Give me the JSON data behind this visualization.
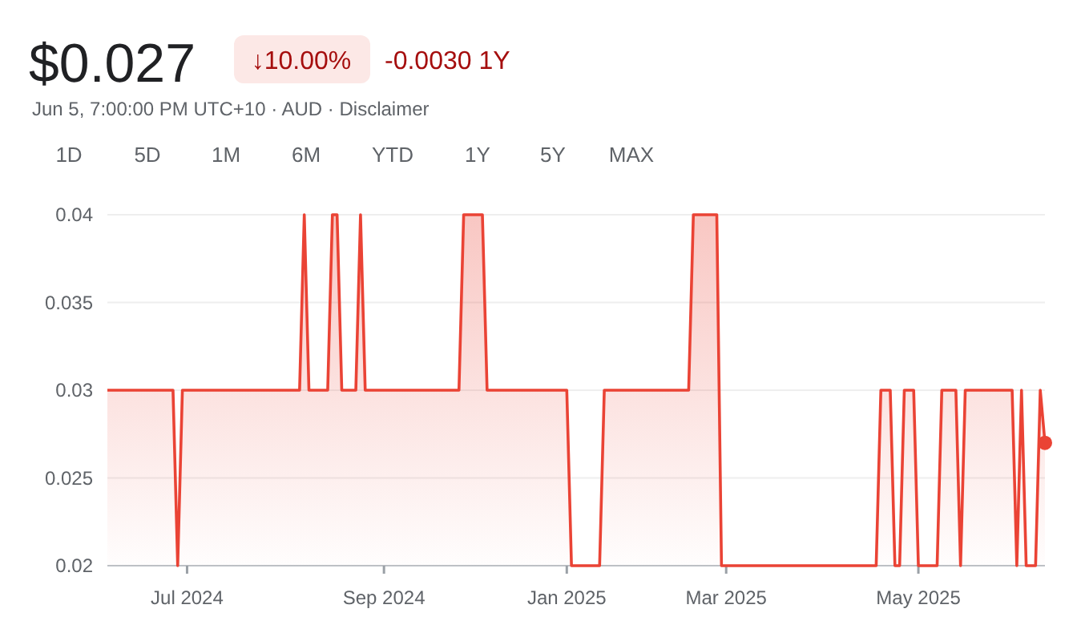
{
  "chart_data": {
    "type": "area",
    "title": "$0.027",
    "subtitle": "Jun 5, 7:00:00 PM UTC+10 · AUD · Disclaimer",
    "annotations": [
      "↓10.00%",
      "-0.0030 1Y",
      "1D",
      "5D",
      "1M",
      "6M",
      "YTD",
      "1Y",
      "5Y",
      "MAX"
    ],
    "categories": [
      null,
      null,
      null,
      null,
      null,
      null,
      null,
      null,
      null,
      null,
      null,
      null,
      null,
      null,
      null,
      null,
      null,
      "Jul 2024",
      null,
      null,
      null,
      null,
      null,
      null,
      null,
      null,
      null,
      null,
      null,
      null,
      null,
      null,
      null,
      null,
      null,
      null,
      null,
      null,
      null,
      null,
      null,
      null,
      null,
      null,
      null,
      null,
      null,
      null,
      null,
      null,
      null,
      null,
      null,
      null,
      null,
      null,
      null,
      null,
      null,
      "Sep 2024",
      null,
      null,
      null,
      null,
      null,
      null,
      null,
      null,
      null,
      null,
      null,
      null,
      null,
      null,
      null,
      null,
      null,
      null,
      null,
      null,
      null,
      null,
      null,
      null,
      null,
      null,
      null,
      null,
      null,
      null,
      null,
      null,
      null,
      null,
      null,
      null,
      null,
      null,
      "Jan 2025",
      null,
      null,
      null,
      null,
      null,
      null,
      null,
      null,
      null,
      null,
      null,
      null,
      null,
      null,
      null,
      null,
      null,
      null,
      null,
      null,
      null,
      null,
      null,
      null,
      null,
      null,
      null,
      null,
      null,
      null,
      null,
      null,
      null,
      "Mar 2025",
      null,
      null,
      null,
      null,
      null,
      null,
      null,
      null,
      null,
      null,
      null,
      null,
      null,
      null,
      null,
      null,
      null,
      null,
      null,
      null,
      null,
      null,
      null,
      null,
      null,
      null,
      null,
      null,
      null,
      null,
      null,
      null,
      null,
      null,
      null,
      null,
      null,
      null,
      null,
      null,
      "May 2025",
      null,
      null,
      null,
      null,
      null,
      null,
      null,
      null,
      null,
      null,
      null,
      null,
      null,
      null,
      null,
      null,
      null,
      null,
      null,
      null,
      null,
      null,
      null,
      null,
      null,
      null,
      null
    ],
    "series": [
      {
        "color": "#ea4335",
        "values": [
          0.03,
          0.03,
          0.03,
          0.03,
          0.03,
          0.03,
          0.03,
          0.03,
          0.03,
          0.03,
          0.03,
          0.03,
          0.03,
          0.03,
          0.03,
          0.02,
          0.03,
          0.03,
          0.03,
          0.03,
          0.03,
          0.03,
          0.03,
          0.03,
          0.03,
          0.03,
          0.03,
          0.03,
          0.03,
          0.03,
          0.03,
          0.03,
          0.03,
          0.03,
          0.03,
          0.03,
          0.03,
          0.03,
          0.03,
          0.03,
          0.03,
          0.03,
          0.04,
          0.03,
          0.03,
          0.03,
          0.03,
          0.03,
          0.04,
          0.04,
          0.03,
          0.03,
          0.03,
          0.03,
          0.04,
          0.03,
          0.03,
          0.03,
          0.03,
          0.03,
          0.03,
          0.03,
          0.03,
          0.03,
          0.03,
          0.03,
          0.03,
          0.03,
          0.03,
          0.03,
          0.03,
          0.03,
          0.03,
          0.03,
          0.03,
          0.03,
          0.04,
          0.04,
          0.04,
          0.04,
          0.04,
          0.03,
          0.03,
          0.03,
          0.03,
          0.03,
          0.03,
          0.03,
          0.03,
          0.03,
          0.03,
          0.03,
          0.03,
          0.03,
          0.03,
          0.03,
          0.03,
          0.03,
          0.03,
          0.02,
          0.02,
          0.02,
          0.02,
          0.02,
          0.02,
          0.02,
          0.03,
          0.03,
          0.03,
          0.03,
          0.03,
          0.03,
          0.03,
          0.03,
          0.03,
          0.03,
          0.03,
          0.03,
          0.03,
          0.03,
          0.03,
          0.03,
          0.03,
          0.03,
          0.03,
          0.04,
          0.04,
          0.04,
          0.04,
          0.04,
          0.04,
          0.02,
          0.02,
          0.02,
          0.02,
          0.02,
          0.02,
          0.02,
          0.02,
          0.02,
          0.02,
          0.02,
          0.02,
          0.02,
          0.02,
          0.02,
          0.02,
          0.02,
          0.02,
          0.02,
          0.02,
          0.02,
          0.02,
          0.02,
          0.02,
          0.02,
          0.02,
          0.02,
          0.02,
          0.02,
          0.02,
          0.02,
          0.02,
          0.02,
          0.02,
          0.03,
          0.03,
          0.03,
          0.02,
          0.02,
          0.03,
          0.03,
          0.03,
          0.02,
          0.02,
          0.02,
          0.02,
          0.02,
          0.03,
          0.03,
          0.03,
          0.03,
          0.02,
          0.03,
          0.03,
          0.03,
          0.03,
          0.03,
          0.03,
          0.03,
          0.03,
          0.03,
          0.03,
          0.03,
          0.02,
          0.03,
          0.02,
          0.02,
          0.02,
          0.03,
          0.027
        ]
      },
      {
        "type": "scatter",
        "color": "#ea4335",
        "values": [
          null,
          null,
          null,
          null,
          null,
          null,
          null,
          null,
          null,
          null,
          null,
          null,
          null,
          null,
          null,
          null,
          null,
          null,
          null,
          null,
          null,
          null,
          null,
          null,
          null,
          null,
          null,
          null,
          null,
          null,
          null,
          null,
          null,
          null,
          null,
          null,
          null,
          null,
          null,
          null,
          null,
          null,
          null,
          null,
          null,
          null,
          null,
          null,
          null,
          null,
          null,
          null,
          null,
          null,
          null,
          null,
          null,
          null,
          null,
          null,
          null,
          null,
          null,
          null,
          null,
          null,
          null,
          null,
          null,
          null,
          null,
          null,
          null,
          null,
          null,
          null,
          null,
          null,
          null,
          null,
          null,
          null,
          null,
          null,
          null,
          null,
          null,
          null,
          null,
          null,
          null,
          null,
          null,
          null,
          null,
          null,
          null,
          null,
          null,
          null,
          null,
          null,
          null,
          null,
          null,
          null,
          null,
          null,
          null,
          null,
          null,
          null,
          null,
          null,
          null,
          null,
          null,
          null,
          null,
          null,
          null,
          null,
          null,
          null,
          null,
          null,
          null,
          null,
          null,
          null,
          null,
          null,
          null,
          null,
          null,
          null,
          null,
          null,
          null,
          null,
          null,
          null,
          null,
          null,
          null,
          null,
          null,
          null,
          null,
          null,
          null,
          null,
          null,
          null,
          null,
          null,
          null,
          null,
          null,
          null,
          null,
          null,
          null,
          null,
          null,
          null,
          null,
          null,
          null,
          null,
          null,
          null,
          null,
          null,
          null,
          null,
          null,
          null,
          null,
          null,
          null,
          null,
          null,
          null,
          null,
          null,
          null,
          null,
          null,
          null,
          null,
          null,
          null,
          null,
          null,
          null,
          null,
          null,
          null,
          null,
          0.027
        ]
      }
    ],
    "ylim": [
      0.02,
      0.04
    ],
    "yticks": [
      0.02,
      0.025,
      0.03,
      0.035,
      0.04
    ],
    "grid": "y",
    "line_style": "solid"
  }
}
